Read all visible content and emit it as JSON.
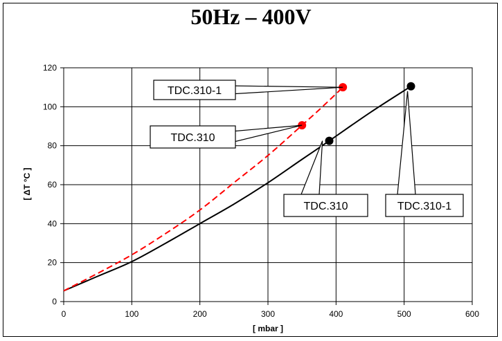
{
  "chart_data": {
    "type": "line",
    "title": "50Hz – 400V",
    "xlabel": "[ mbar ]",
    "ylabel": "[ ΔT °C ]",
    "xlim": [
      0,
      600
    ],
    "ylim": [
      0,
      120
    ],
    "xticks": [
      0,
      100,
      200,
      300,
      400,
      500,
      600
    ],
    "yticks": [
      0,
      20,
      40,
      60,
      80,
      100,
      120
    ],
    "grid": true,
    "series": [
      {
        "style": "solid",
        "color": "#000000",
        "x": [
          0,
          50,
          100,
          150,
          200,
          250,
          300,
          350,
          390,
          450,
          510
        ],
        "y": [
          5.5,
          13,
          20.5,
          30,
          40,
          50,
          61,
          73,
          82.5,
          97,
          110.5
        ]
      },
      {
        "style": "dashed",
        "color": "#ff0000",
        "x": [
          0,
          50,
          100,
          150,
          200,
          250,
          300,
          350,
          380,
          410
        ],
        "y": [
          5.5,
          14.5,
          24,
          35,
          47,
          61,
          75,
          90.5,
          100,
          110
        ]
      }
    ],
    "markers": [
      {
        "x": 390,
        "y": 82.5,
        "color": "#000000"
      },
      {
        "x": 510,
        "y": 110.5,
        "color": "#000000"
      },
      {
        "x": 350,
        "y": 90.5,
        "color": "#ff0000"
      },
      {
        "x": 410,
        "y": 110,
        "color": "#ff0000"
      }
    ],
    "annotations": [
      {
        "text": "TDC.310-1",
        "target": [
          410,
          110
        ]
      },
      {
        "text": "TDC.310",
        "target": [
          350,
          90.5
        ]
      },
      {
        "text": "TDC.310",
        "target": [
          380,
          82.5
        ]
      },
      {
        "text": "TDC.310-1",
        "target": [
          505,
          108
        ]
      }
    ]
  }
}
